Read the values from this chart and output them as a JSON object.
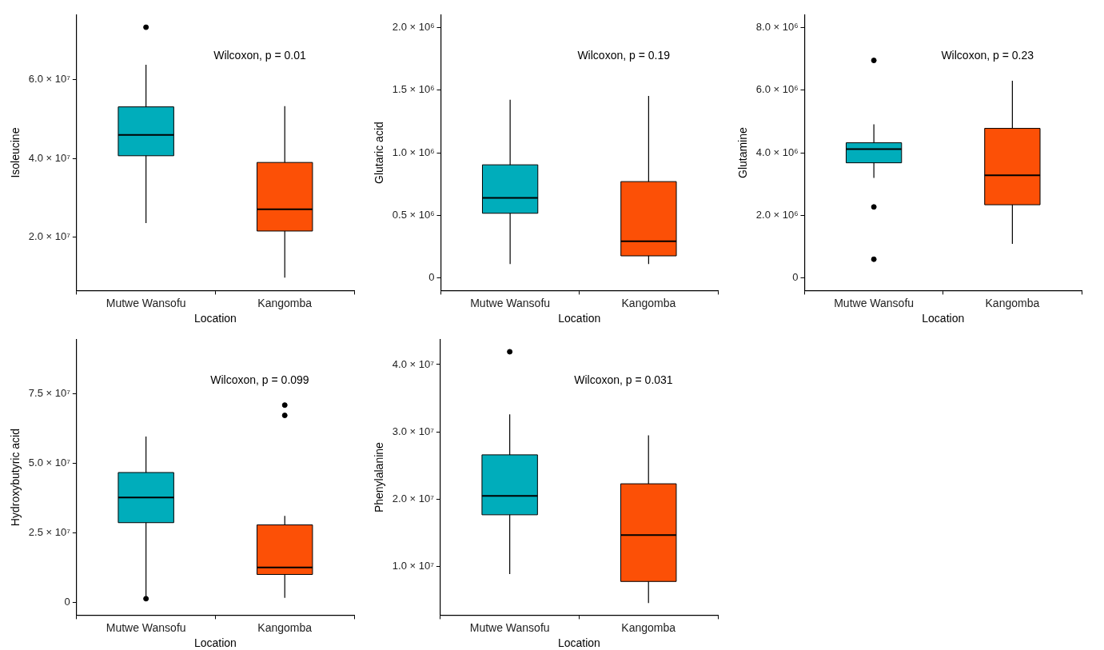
{
  "chart_data": [
    {
      "type": "box",
      "categories": [
        "Mutwe Wansofu",
        "Kangomba"
      ],
      "xlabel": "Location",
      "ylabel": "Isoleucine",
      "colors": [
        "#00adbb",
        "#fc5006"
      ],
      "grid": false,
      "ylim": [
        6500000,
        76400000
      ],
      "yticks": [
        {
          "value": 20000000,
          "label": "2.0 × 10⁷"
        },
        {
          "value": 40000000,
          "label": "4.0 × 10⁷"
        },
        {
          "value": 60000000,
          "label": "6.0 × 10⁷"
        }
      ],
      "boxes": [
        {
          "low": 23600000,
          "q1": 40700000,
          "median": 46000000,
          "q3": 53100000,
          "high": 63800000,
          "outliers": [
            73300000
          ]
        },
        {
          "low": 9800000,
          "q1": 21600000,
          "median": 27100000,
          "q3": 39000000,
          "high": 53300000
        }
      ],
      "annotations": [
        "Wilcoxon, p = 0.01"
      ]
    },
    {
      "type": "box",
      "categories": [
        "Mutwe Wansofu",
        "Kangomba"
      ],
      "xlabel": "Location",
      "ylabel": "Glutaric acid",
      "colors": [
        "#00adbb",
        "#fc5006"
      ],
      "grid": false,
      "ylim": [
        -100000,
        2100000
      ],
      "yticks": [
        {
          "value": 0,
          "label": "0"
        },
        {
          "value": 500000,
          "label": "0.5 × 10⁶"
        },
        {
          "value": 1000000,
          "label": "1.0 × 10⁶"
        },
        {
          "value": 1500000,
          "label": "1.5 × 10⁶"
        },
        {
          "value": 2000000,
          "label": "2.0 × 10⁶"
        }
      ],
      "boxes": [
        {
          "low": 112000,
          "q1": 517000,
          "median": 640000,
          "q3": 904000,
          "high": 1423000
        },
        {
          "low": 112000,
          "q1": 177000,
          "median": 294000,
          "q3": 770000,
          "high": 1454000
        }
      ],
      "annotations": [
        "Wilcoxon, p = 0.19"
      ]
    },
    {
      "type": "box",
      "categories": [
        "Mutwe Wansofu",
        "Kangomba"
      ],
      "xlabel": "Location",
      "ylabel": "Glutamine",
      "colors": [
        "#00adbb",
        "#fc5006"
      ],
      "grid": false,
      "ylim": [
        -400000,
        8400000
      ],
      "yticks": [
        {
          "value": 0,
          "label": "0"
        },
        {
          "value": 2000000,
          "label": "2.0 × 10⁶"
        },
        {
          "value": 4000000,
          "label": "4.0 × 10⁶"
        },
        {
          "value": 6000000,
          "label": "6.0 × 10⁶"
        },
        {
          "value": 8000000,
          "label": "8.0 × 10⁶"
        }
      ],
      "boxes": [
        {
          "low": 3200000,
          "q1": 3680000,
          "median": 4120000,
          "q3": 4320000,
          "high": 4910000,
          "outliers": [
            6950000,
            2270000,
            600000
          ]
        },
        {
          "low": 1090000,
          "q1": 2340000,
          "median": 3280000,
          "q3": 4780000,
          "high": 6300000
        }
      ],
      "annotations": [
        "Wilcoxon, p = 0.23"
      ]
    },
    {
      "type": "box",
      "categories": [
        "Mutwe Wansofu",
        "Kangomba"
      ],
      "xlabel": "Location",
      "ylabel": "Hydroxybutyric acid",
      "colors": [
        "#00adbb",
        "#fc5006"
      ],
      "grid": false,
      "ylim": [
        -4500000,
        94400000
      ],
      "yticks": [
        {
          "value": 0,
          "label": "0"
        },
        {
          "value": 25000000,
          "label": "2.5 × 10⁷"
        },
        {
          "value": 50000000,
          "label": "5.0 × 10⁷"
        },
        {
          "value": 75000000,
          "label": "7.5 × 10⁷"
        }
      ],
      "boxes": [
        {
          "low": 1400000,
          "q1": 28700000,
          "median": 37700000,
          "q3": 46700000,
          "high": 59600000,
          "outliers": [
            1400000
          ]
        },
        {
          "low": 1700000,
          "q1": 10100000,
          "median": 12600000,
          "q3": 27900000,
          "high": 31100000,
          "outliers": [
            70900000,
            67200000
          ]
        }
      ],
      "annotations": [
        "Wilcoxon, p = 0.099"
      ]
    },
    {
      "type": "box",
      "categories": [
        "Mutwe Wansofu",
        "Kangomba"
      ],
      "xlabel": "Location",
      "ylabel": "Phenylalanine",
      "colors": [
        "#00adbb",
        "#fc5006"
      ],
      "grid": false,
      "ylim": [
        2800000,
        43700000
      ],
      "yticks": [
        {
          "value": 10000000,
          "label": "1.0 × 10⁷"
        },
        {
          "value": 20000000,
          "label": "2.0 × 10⁷"
        },
        {
          "value": 30000000,
          "label": "3.0 × 10⁷"
        },
        {
          "value": 40000000,
          "label": "4.0 × 10⁷"
        }
      ],
      "boxes": [
        {
          "low": 8900000,
          "q1": 17700000,
          "median": 20500000,
          "q3": 26600000,
          "high": 32600000,
          "outliers": [
            41900000
          ]
        },
        {
          "low": 4600000,
          "q1": 7800000,
          "median": 14700000,
          "q3": 22300000,
          "high": 29500000
        }
      ],
      "annotations": [
        "Wilcoxon, p = 0.031"
      ]
    }
  ]
}
